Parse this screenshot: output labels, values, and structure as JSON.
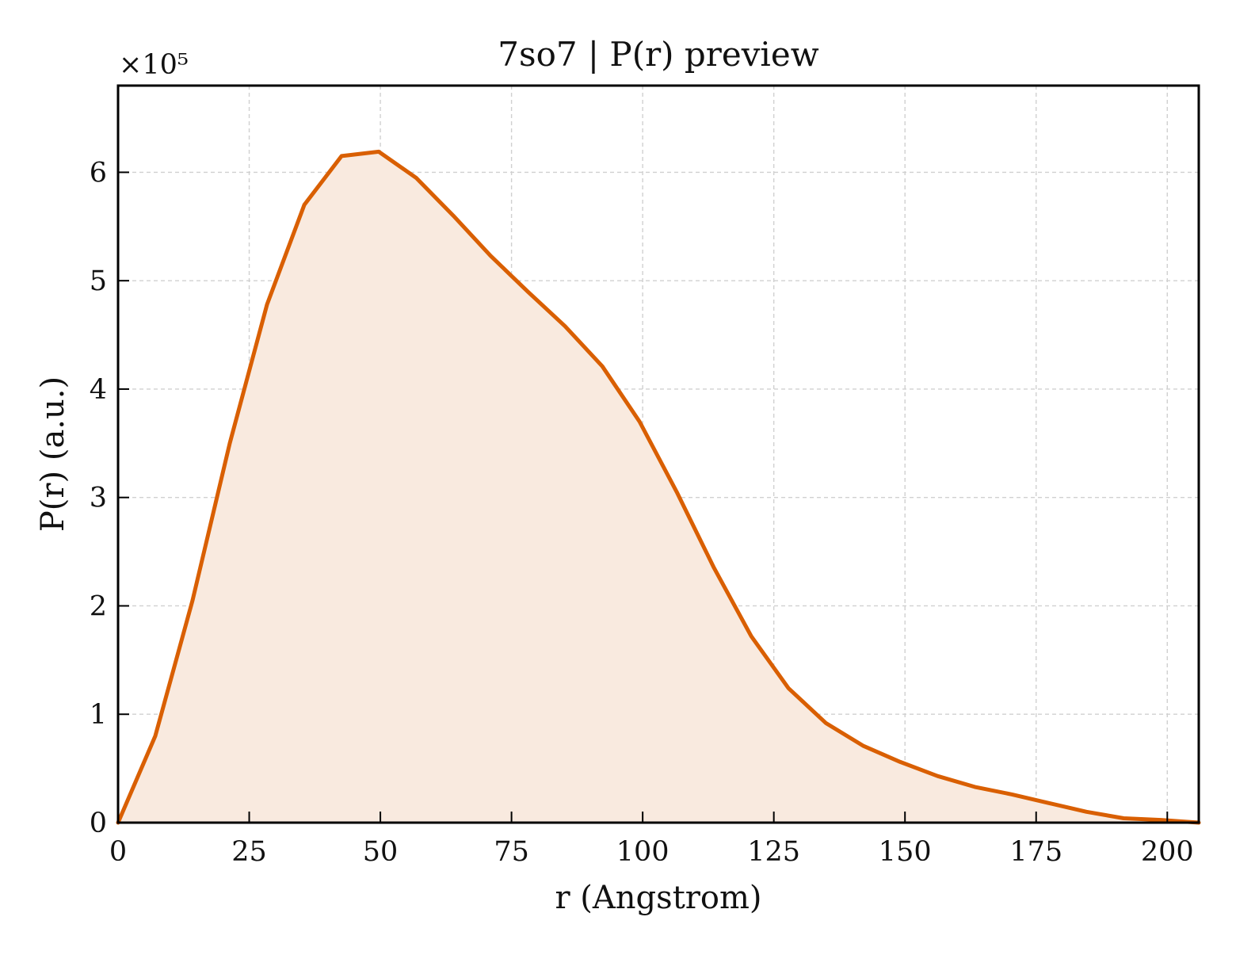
{
  "chart_data": {
    "type": "area",
    "title": "7so7 | P(r) preview",
    "xlabel": "r (Angstrom)",
    "ylabel": "P(r) (a.u.)",
    "y_offset_label": "×10⁵",
    "y_scale_factor": 100000,
    "xlim": [
      0,
      206
    ],
    "ylim": [
      0,
      680000
    ],
    "x_ticks": [
      0,
      25,
      50,
      75,
      100,
      125,
      150,
      175,
      200
    ],
    "x_tick_labels": [
      "0",
      "25",
      "50",
      "75",
      "100",
      "125",
      "150",
      "175",
      "200"
    ],
    "y_ticks": [
      0,
      100000,
      200000,
      300000,
      400000,
      500000,
      600000
    ],
    "y_tick_labels": [
      "0",
      "1",
      "2",
      "3",
      "4",
      "5",
      "6"
    ],
    "grid": true,
    "line_color": "#d95f02",
    "fill_color": "#f9eadf",
    "series": [
      {
        "x": [
          0,
          7.1,
          14.2,
          21.3,
          28.4,
          35.5,
          42.6,
          49.7,
          56.8,
          63.9,
          71.0,
          78.1,
          85.2,
          92.3,
          99.4,
          106.5,
          113.6,
          120.7,
          127.8,
          134.9,
          142.0,
          149.1,
          156.2,
          163.3,
          170.4,
          177.5,
          184.6,
          191.7,
          198.8,
          206.0
        ],
        "y": [
          0,
          80000,
          205000,
          350000,
          478000,
          570000,
          615000,
          619000,
          595000,
          560000,
          523000,
          490000,
          458000,
          421000,
          370000,
          305000,
          235000,
          172000,
          124000,
          92000,
          71000,
          56000,
          43000,
          33000,
          26000,
          18000,
          10000,
          4000,
          2500,
          0
        ]
      }
    ]
  }
}
